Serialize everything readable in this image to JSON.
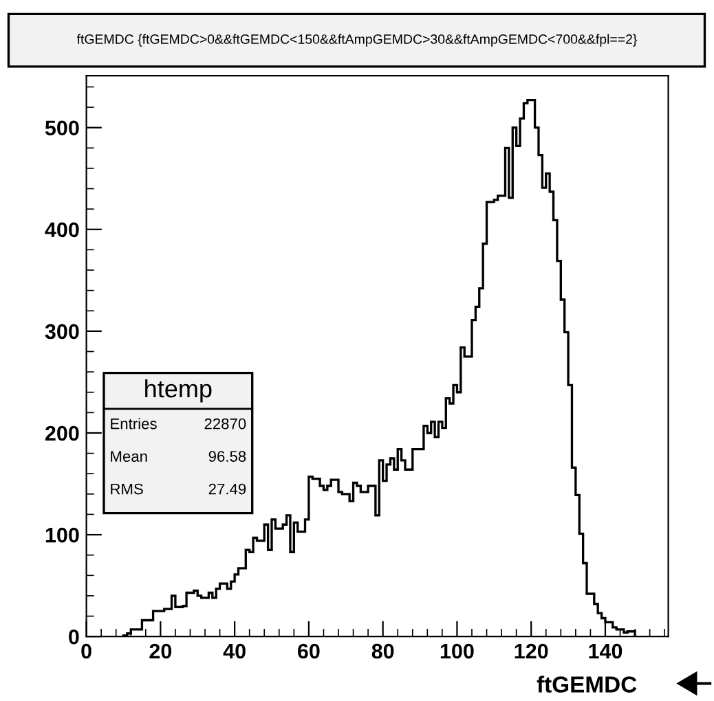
{
  "chart_data": {
    "type": "histogram",
    "title": "ftGEMDC {ftGEMDC>0&&ftGEMDC<150&&ftAmpGEMDC>30&&ftAmpGEMDC<700&&fpl==2}",
    "xlabel": "ftGEMDC",
    "bins": [
      10,
      11,
      12,
      13,
      14,
      15,
      16,
      17,
      18,
      19,
      20,
      21,
      22,
      23,
      24,
      25,
      26,
      27,
      28,
      29,
      30,
      31,
      32,
      33,
      34,
      35,
      36,
      37,
      38,
      39,
      40,
      41,
      42,
      43,
      44,
      45,
      46,
      47,
      48,
      49,
      50,
      51,
      52,
      53,
      54,
      55,
      56,
      57,
      58,
      59,
      60,
      61,
      62,
      63,
      64,
      65,
      66,
      67,
      68,
      69,
      70,
      71,
      72,
      73,
      74,
      75,
      76,
      77,
      78,
      79,
      80,
      81,
      82,
      83,
      84,
      85,
      86,
      87,
      88,
      89,
      90,
      91,
      92,
      93,
      94,
      95,
      96,
      97,
      98,
      99,
      100,
      101,
      102,
      103,
      104,
      105,
      106,
      107,
      108,
      109,
      110,
      111,
      112,
      113,
      114,
      115,
      116,
      117,
      118,
      119,
      120,
      121,
      122,
      123,
      124,
      125,
      126,
      127,
      128,
      129,
      130,
      131,
      132,
      133,
      134,
      135,
      136,
      137,
      138,
      139,
      140,
      141,
      142,
      143,
      144,
      145,
      146,
      147,
      148
    ],
    "values": [
      1,
      3,
      7,
      7,
      7,
      16,
      16,
      16,
      25,
      25,
      25,
      27,
      27,
      40,
      29,
      29,
      30,
      43,
      43,
      45,
      40,
      38,
      38,
      43,
      38,
      47,
      52,
      52,
      47,
      54,
      61,
      67,
      67,
      85,
      83,
      97,
      94,
      94,
      110,
      85,
      115,
      106,
      106,
      110,
      119,
      83,
      112,
      103,
      103,
      115,
      157,
      155,
      155,
      148,
      144,
      148,
      154,
      154,
      142,
      140,
      140,
      133,
      151,
      148,
      142,
      142,
      148,
      148,
      119,
      173,
      153,
      169,
      175,
      164,
      184,
      173,
      164,
      164,
      184,
      184,
      184,
      207,
      200,
      211,
      196,
      211,
      205,
      234,
      229,
      247,
      240,
      284,
      275,
      275,
      311,
      324,
      342,
      386,
      427,
      427,
      429,
      433,
      433,
      480,
      431,
      500,
      482,
      509,
      524,
      527,
      527,
      500,
      473,
      441,
      455,
      437,
      409,
      369,
      331,
      299,
      247,
      166,
      139,
      101,
      72,
      42,
      42,
      32,
      23,
      18,
      14,
      14,
      9,
      7,
      7,
      4,
      5,
      5
    ],
    "color": "#000000",
    "xlim": [
      0,
      157
    ],
    "ylim": [
      0,
      551
    ],
    "xticks": [
      0,
      20,
      40,
      60,
      80,
      100,
      120,
      140
    ],
    "yticks": [
      0,
      100,
      200,
      300,
      400,
      500
    ],
    "annotations": [
      "htemp",
      "Entries 22870",
      "Mean 96.58",
      "RMS 27.49"
    ],
    "grid": false,
    "legend": false
  }
}
